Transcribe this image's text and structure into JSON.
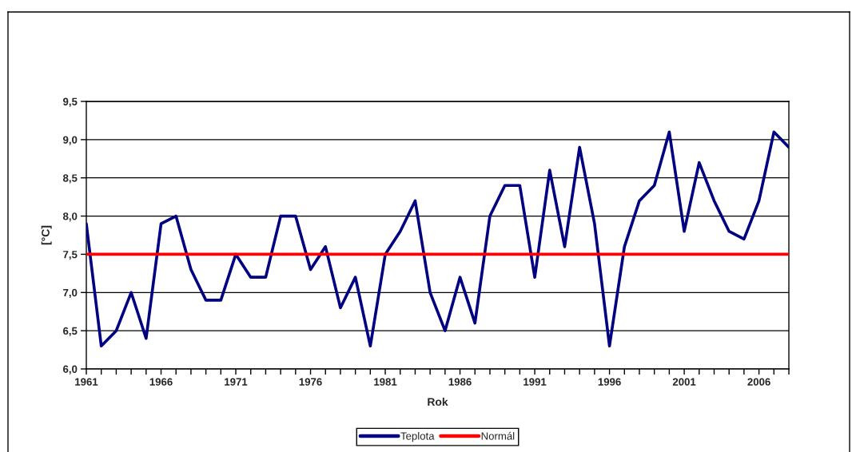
{
  "chart_data": {
    "type": "line",
    "xlabel": "Rok",
    "ylabel": "[°C]",
    "categories": [
      "1961",
      null,
      null,
      null,
      null,
      "1966",
      null,
      null,
      null,
      null,
      "1971",
      null,
      null,
      null,
      null,
      "1976",
      null,
      null,
      null,
      null,
      "1981",
      null,
      null,
      null,
      null,
      "1986",
      null,
      null,
      null,
      null,
      "1991",
      null,
      null,
      null,
      null,
      "1996",
      null,
      null,
      null,
      null,
      "2001",
      null,
      null,
      null,
      null,
      "2006",
      null,
      null
    ],
    "series": [
      {
        "name": "Teplota",
        "color": "#000080",
        "values": [
          7.9,
          6.3,
          6.5,
          7.0,
          6.4,
          7.9,
          8.0,
          7.3,
          6.9,
          6.9,
          7.5,
          7.2,
          7.2,
          8.0,
          8.0,
          7.3,
          7.6,
          6.8,
          7.2,
          6.3,
          7.5,
          7.8,
          8.2,
          7.0,
          6.5,
          7.2,
          6.6,
          8.0,
          8.4,
          8.4,
          7.2,
          8.6,
          7.6,
          8.9,
          7.9,
          6.3,
          7.6,
          8.2,
          8.4,
          9.1,
          7.8,
          8.7,
          8.2,
          7.8,
          7.7,
          8.2,
          9.1,
          8.9
        ]
      },
      {
        "name": "Normál",
        "color": "#ff0000",
        "values": [
          7.5,
          7.5,
          7.5,
          7.5,
          7.5,
          7.5,
          7.5,
          7.5,
          7.5,
          7.5,
          7.5,
          7.5,
          7.5,
          7.5,
          7.5,
          7.5,
          7.5,
          7.5,
          7.5,
          7.5,
          7.5,
          7.5,
          7.5,
          7.5,
          7.5,
          7.5,
          7.5,
          7.5,
          7.5,
          7.5,
          7.5,
          7.5,
          7.5,
          7.5,
          7.5,
          7.5,
          7.5,
          7.5,
          7.5,
          7.5,
          7.5,
          7.5,
          7.5,
          7.5,
          7.5,
          7.5,
          7.5,
          7.5
        ]
      }
    ],
    "ylim": [
      6.0,
      9.5
    ],
    "yticks": [
      {
        "value": 6.0,
        "label": "6,0"
      },
      {
        "value": 6.5,
        "label": "6,5"
      },
      {
        "value": 7.0,
        "label": "7,0"
      },
      {
        "value": 7.5,
        "label": "7,5"
      },
      {
        "value": 8.0,
        "label": "8,0"
      },
      {
        "value": 8.5,
        "label": "8,5"
      },
      {
        "value": 9.0,
        "label": "9,0"
      },
      {
        "value": 9.5,
        "label": "9,5"
      }
    ],
    "grid": "y",
    "legend": "bottom",
    "marker": "none",
    "line_style": "solid"
  }
}
